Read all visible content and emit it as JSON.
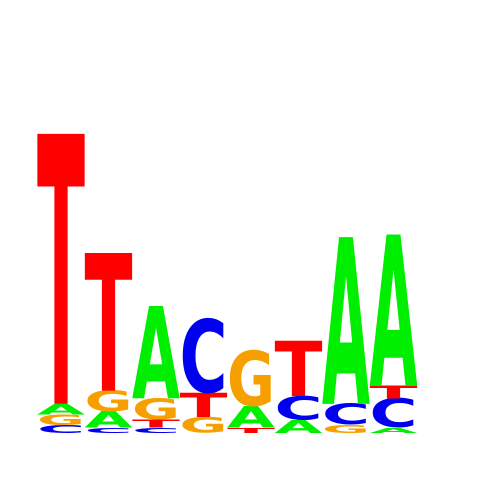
{
  "chart_data": {
    "type": "sequence-logo",
    "alphabet": [
      "A",
      "C",
      "G",
      "T"
    ],
    "colors": {
      "A": "#00ee00",
      "C": "#0000ee",
      "G": "#f5a000",
      "T": "#ff0000"
    },
    "positions": [
      {
        "pos": 1,
        "letters": [
          {
            "base": "C",
            "height": 0.03
          },
          {
            "base": "G",
            "height": 0.04
          },
          {
            "base": "A",
            "height": 0.04
          },
          {
            "base": "T",
            "height": 1.02
          }
        ]
      },
      {
        "pos": 2,
        "letters": [
          {
            "base": "C",
            "height": 0.02
          },
          {
            "base": "A",
            "height": 0.06
          },
          {
            "base": "G",
            "height": 0.08
          },
          {
            "base": "T",
            "height": 0.52
          }
        ]
      },
      {
        "pos": 3,
        "letters": [
          {
            "base": "C",
            "height": 0.02
          },
          {
            "base": "T",
            "height": 0.03
          },
          {
            "base": "G",
            "height": 0.08
          },
          {
            "base": "A",
            "height": 0.35
          }
        ]
      },
      {
        "pos": 4,
        "letters": [
          {
            "base": "G",
            "height": 0.06
          },
          {
            "base": "T",
            "height": 0.09
          },
          {
            "base": "C",
            "height": 0.28
          }
        ]
      },
      {
        "pos": 5,
        "letters": [
          {
            "base": "T",
            "height": 0.02
          },
          {
            "base": "A",
            "height": 0.08
          },
          {
            "base": "G",
            "height": 0.21
          }
        ]
      },
      {
        "pos": 6,
        "letters": [
          {
            "base": "A",
            "height": 0.05
          },
          {
            "base": "C",
            "height": 0.09
          },
          {
            "base": "T",
            "height": 0.21
          }
        ]
      },
      {
        "pos": 7,
        "letters": [
          {
            "base": "G",
            "height": 0.03
          },
          {
            "base": "C",
            "height": 0.08
          },
          {
            "base": "A",
            "height": 0.63
          }
        ]
      },
      {
        "pos": 8,
        "letters": [
          {
            "base": "A",
            "height": 0.02
          },
          {
            "base": "C",
            "height": 0.11
          },
          {
            "base": "T",
            "height": 0.05
          },
          {
            "base": "A",
            "height": 0.57
          }
        ]
      }
    ]
  }
}
